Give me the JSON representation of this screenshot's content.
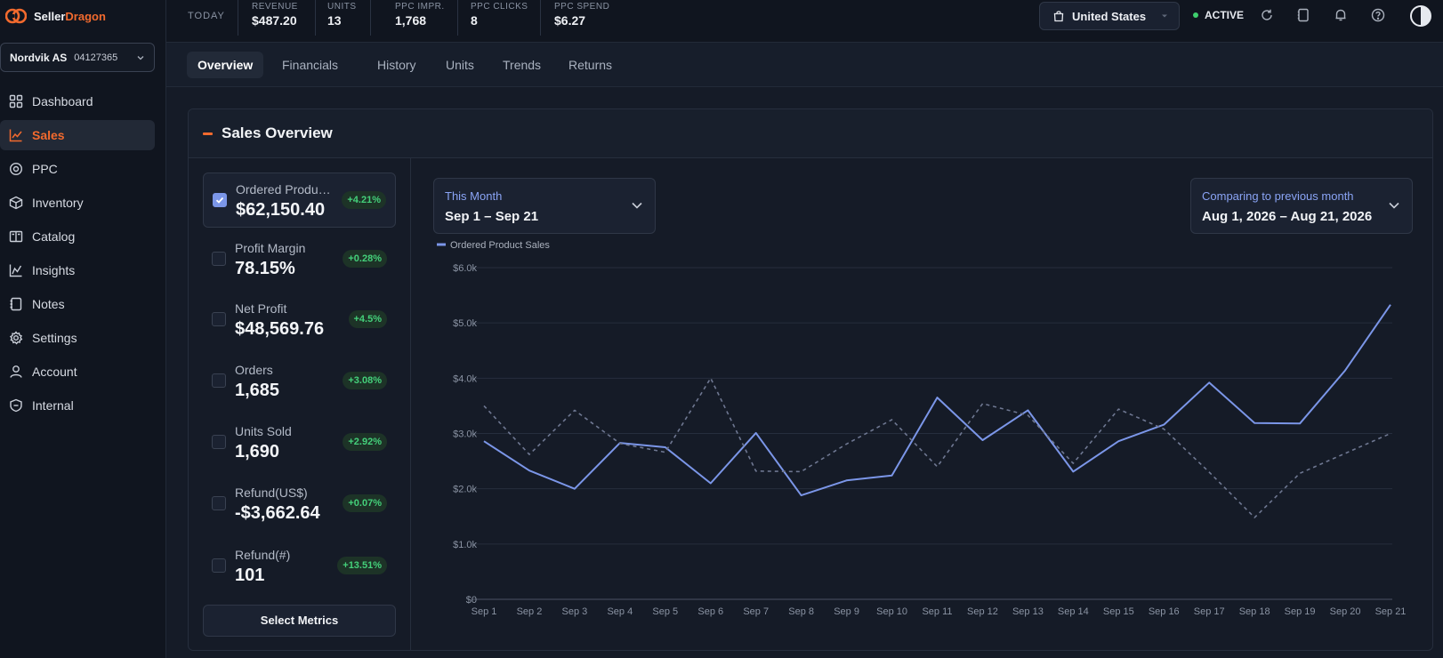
{
  "app": {
    "logo_part1": "Seller",
    "logo_part2": "Dragon",
    "accent_color": "#f26a2e"
  },
  "account": {
    "name": "Nordvik AS",
    "id": "04127365"
  },
  "sidebar": {
    "items": [
      {
        "label": "Dashboard",
        "icon": "grid-icon",
        "active": false
      },
      {
        "label": "Sales",
        "icon": "chart-line-icon",
        "active": true
      },
      {
        "label": "PPC",
        "icon": "target-icon",
        "active": false
      },
      {
        "label": "Inventory",
        "icon": "box-icon",
        "active": false
      },
      {
        "label": "Catalog",
        "icon": "book-icon",
        "active": false
      },
      {
        "label": "Insights",
        "icon": "insights-icon",
        "active": false
      },
      {
        "label": "Notes",
        "icon": "notes-icon",
        "active": false
      },
      {
        "label": "Settings",
        "icon": "gear-icon",
        "active": false
      },
      {
        "label": "Account",
        "icon": "user-icon",
        "active": false
      },
      {
        "label": "Internal",
        "icon": "shield-icon",
        "active": false
      }
    ]
  },
  "topbar": {
    "today_label": "TODAY",
    "stats": [
      {
        "label": "REVENUE",
        "value": "$487.20"
      },
      {
        "label": "UNITS",
        "value": "13"
      },
      {
        "label": "PPC IMPR.",
        "value": "1,768"
      },
      {
        "label": "PPC CLICKS",
        "value": "8"
      },
      {
        "label": "PPC SPEND",
        "value": "$6.27"
      }
    ],
    "country": "United States",
    "status": "ACTIVE",
    "status_color": "#3ecf6e"
  },
  "tabs": [
    "Overview",
    "Financials",
    "History",
    "Units",
    "Trends",
    "Returns"
  ],
  "card": {
    "title": "Sales Overview",
    "select_metrics_label": "Select Metrics",
    "metrics": [
      {
        "label": "Ordered Product Sales",
        "value": "$62,150.40",
        "change": "+4.21%",
        "checked": true
      },
      {
        "label": "Profit Margin",
        "value": "78.15%",
        "change": "+0.28%",
        "checked": false
      },
      {
        "label": "Net Profit",
        "value": "$48,569.76",
        "change": "+4.5%",
        "checked": false
      },
      {
        "label": "Orders",
        "value": "1,685",
        "change": "+3.08%",
        "checked": false
      },
      {
        "label": "Units Sold",
        "value": "1,690",
        "change": "+2.92%",
        "checked": false
      },
      {
        "label": "Refund(US$)",
        "value": "-$3,662.64",
        "change": "+0.07%",
        "checked": false
      },
      {
        "label": "Refund(#)",
        "value": "101",
        "change": "+13.51%",
        "checked": false
      }
    ],
    "date_range": {
      "period": "This Month",
      "range": "Sep 1 – Sep 21"
    },
    "comparison": {
      "label": "Comparing to previous month",
      "range": "Aug 1, 2026 – Aug 21, 2026"
    }
  },
  "chart_data": {
    "type": "line",
    "categories": [
      "Sep 1",
      "Sep 2",
      "Sep 3",
      "Sep 4",
      "Sep 5",
      "Sep 6",
      "Sep 7",
      "Sep 8",
      "Sep 9",
      "Sep 10",
      "Sep 11",
      "Sep 12",
      "Sep 13",
      "Sep 14",
      "Sep 15",
      "Sep 16",
      "Sep 17",
      "Sep 18",
      "Sep 19",
      "Sep 20",
      "Sep 21"
    ],
    "ylim": [
      0,
      6000
    ],
    "yticks": [
      {
        "value": 0,
        "label": "$0"
      },
      {
        "value": 1000,
        "label": "$1.0k"
      },
      {
        "value": 2000,
        "label": "$2.0k"
      },
      {
        "value": 3000,
        "label": "$3.0k"
      },
      {
        "value": 4000,
        "label": "$4.0k"
      },
      {
        "value": 5000,
        "label": "$5.0k"
      },
      {
        "value": 6000,
        "label": "$6.0k"
      }
    ],
    "grid": true,
    "legend_position": "top-left",
    "series": [
      {
        "name": "Ordered Product Sales",
        "color": "#7b96e8",
        "style": "solid",
        "values": [
          2860,
          2330,
          2000,
          2830,
          2750,
          2100,
          3010,
          1880,
          2150,
          2240,
          3650,
          2880,
          3420,
          2310,
          2860,
          3160,
          3920,
          3190,
          3180,
          4140,
          5330
        ]
      },
      {
        "color": "#6e7791",
        "style": "dashed",
        "values": [
          3500,
          2620,
          3420,
          2820,
          2660,
          4000,
          2320,
          2310,
          2810,
          3250,
          2400,
          3540,
          3330,
          2460,
          3440,
          3080,
          2300,
          1480,
          2280,
          2640,
          3000
        ]
      }
    ]
  }
}
